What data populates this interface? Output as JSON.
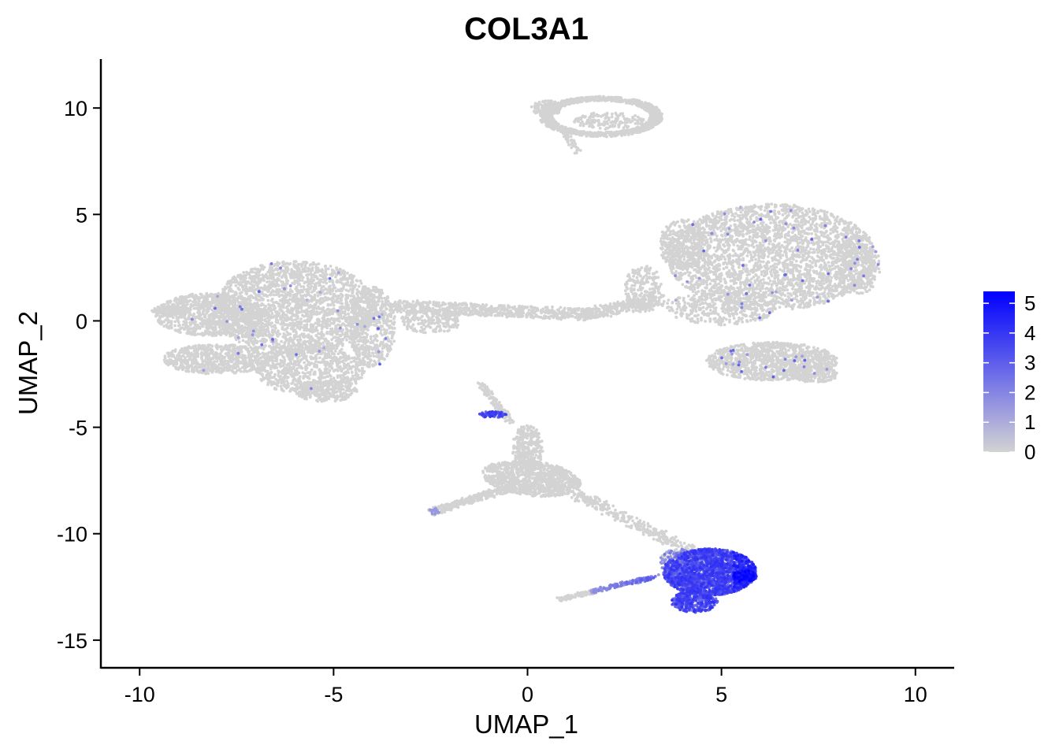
{
  "chart_data": {
    "type": "scatter",
    "title": "COL3A1",
    "xlabel": "UMAP_1",
    "ylabel": "UMAP_2",
    "xlim": [
      -11,
      11
    ],
    "ylim": [
      -16.3,
      12.3
    ],
    "x_ticks": [
      -10,
      -5,
      0,
      5,
      10
    ],
    "x_tick_labels": [
      "-10",
      "-5",
      "0",
      "5",
      "10"
    ],
    "y_ticks": [
      10,
      5,
      0,
      -5,
      -10,
      -15
    ],
    "y_tick_labels": [
      "10",
      "5",
      "0",
      "-5",
      "-10",
      "-15"
    ],
    "grid": false,
    "legend": {
      "placement": "right",
      "type": "colorbar",
      "min": 0,
      "max": 5.4,
      "ticks": [
        0,
        1,
        2,
        3,
        4,
        5
      ],
      "tick_labels": [
        "0",
        "1",
        "2",
        "3",
        "4",
        "5"
      ],
      "low_color": "#d3d3d3",
      "high_color": "#0000ff"
    },
    "series": [
      {
        "name": "left cluster",
        "center": [
          -6.5,
          0.2
        ],
        "radius": [
          3.2,
          2.4
        ],
        "expression": "mostly 0"
      },
      {
        "name": "bridge",
        "center": [
          0,
          0.6
        ],
        "radius": [
          3.5,
          0.4
        ],
        "expression": "0"
      },
      {
        "name": "right cluster",
        "center": [
          6.3,
          2.9
        ],
        "radius": [
          2.9,
          2.6
        ],
        "expression": "mostly 0"
      },
      {
        "name": "right lower lobe",
        "center": [
          6.3,
          -1.9
        ],
        "radius": [
          1.6,
          0.9
        ],
        "expression": "mostly 0"
      },
      {
        "name": "top ring",
        "center": [
          1.9,
          9.6
        ],
        "radius": [
          1.7,
          1.0
        ],
        "expression": "0"
      },
      {
        "name": "lower branch",
        "center": [
          0,
          -7.5
        ],
        "radius": [
          1.6,
          1.3
        ],
        "expression": "0"
      },
      {
        "name": "high-expression cluster",
        "center": [
          4.8,
          -11.8
        ],
        "radius": [
          1.0,
          1.1
        ],
        "expression": "2-5"
      }
    ]
  }
}
